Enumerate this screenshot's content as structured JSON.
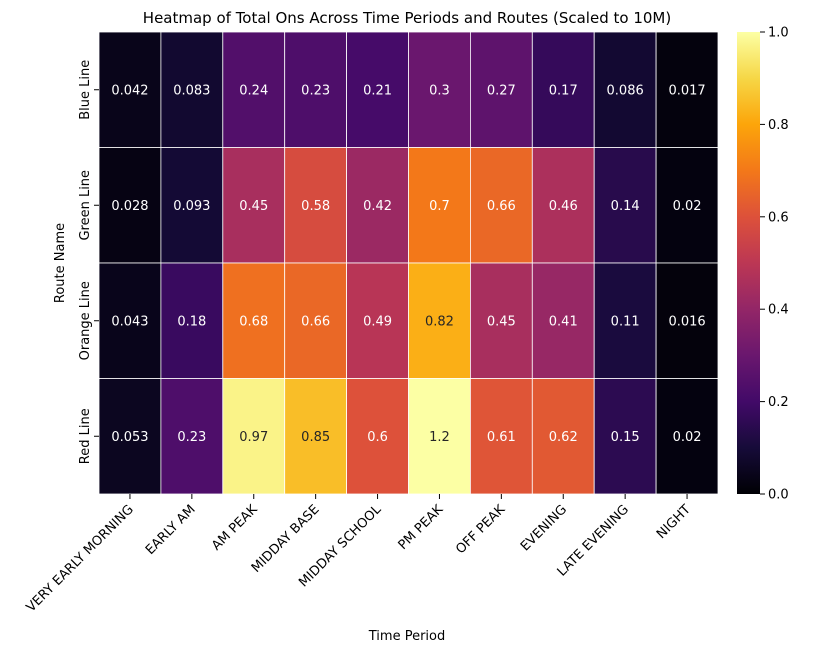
{
  "chart_data": {
    "type": "heatmap",
    "title": "Heatmap of Total Ons Across Time Periods and Routes (Scaled to 10M)",
    "xlabel": "Time Period",
    "ylabel": "Route Name",
    "x_categories": [
      "VERY EARLY MORNING",
      "EARLY AM",
      "AM PEAK",
      "MIDDAY BASE",
      "MIDDAY SCHOOL",
      "PM PEAK",
      "OFF PEAK",
      "EVENING",
      "LATE EVENING",
      "NIGHT"
    ],
    "y_categories": [
      "Blue Line",
      "Green Line",
      "Orange Line",
      "Red Line"
    ],
    "values": [
      [
        0.042,
        0.083,
        0.24,
        0.23,
        0.21,
        0.3,
        0.27,
        0.17,
        0.086,
        0.017
      ],
      [
        0.028,
        0.093,
        0.45,
        0.58,
        0.42,
        0.7,
        0.66,
        0.46,
        0.14,
        0.02
      ],
      [
        0.043,
        0.18,
        0.68,
        0.66,
        0.49,
        0.82,
        0.45,
        0.41,
        0.11,
        0.016
      ],
      [
        0.053,
        0.23,
        0.97,
        0.85,
        0.6,
        1.2,
        0.61,
        0.62,
        0.15,
        0.02
      ]
    ],
    "value_labels": [
      [
        "0.042",
        "0.083",
        "0.24",
        "0.23",
        "0.21",
        "0.3",
        "0.27",
        "0.17",
        "0.086",
        "0.017"
      ],
      [
        "0.028",
        "0.093",
        "0.45",
        "0.58",
        "0.42",
        "0.7",
        "0.66",
        "0.46",
        "0.14",
        "0.02"
      ],
      [
        "0.043",
        "0.18",
        "0.68",
        "0.66",
        "0.49",
        "0.82",
        "0.45",
        "0.41",
        "0.11",
        "0.016"
      ],
      [
        "0.053",
        "0.23",
        "0.97",
        "0.85",
        "0.6",
        "1.2",
        "0.61",
        "0.62",
        "0.15",
        "0.02"
      ]
    ],
    "colormap": "inferno",
    "color_range": [
      0,
      1
    ],
    "colorbar": {
      "ticks": [
        0.0,
        0.2,
        0.4,
        0.6,
        0.8,
        1.0
      ],
      "tick_labels": [
        "0.0",
        "0.2",
        "0.4",
        "0.6",
        "0.8",
        "1.0"
      ]
    }
  }
}
